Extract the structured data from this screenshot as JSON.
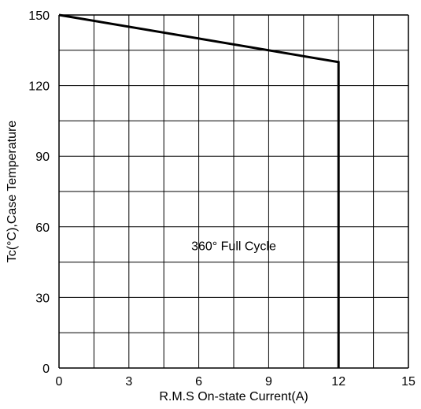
{
  "chart_data": {
    "type": "line",
    "title": "",
    "xlabel": "R.M.S On-state Current(A)",
    "ylabel": "Tc(°C),Case Temperature",
    "xlim": [
      0,
      15
    ],
    "ylim": [
      0,
      150
    ],
    "x_ticks": [
      0,
      3,
      6,
      9,
      12,
      15
    ],
    "y_ticks": [
      0,
      30,
      60,
      90,
      120,
      150
    ],
    "x_grid_step": 1.5,
    "y_grid_step": 15,
    "grid": true,
    "legend": "none",
    "series": [
      {
        "color": "#000000",
        "points": [
          {
            "x": 0,
            "y": 150
          },
          {
            "x": 12,
            "y": 130
          },
          {
            "x": 12,
            "y": 0
          }
        ]
      }
    ],
    "annotations": [
      {
        "text": "360° Full Cycle",
        "x": 7.5,
        "y": 52
      }
    ]
  }
}
